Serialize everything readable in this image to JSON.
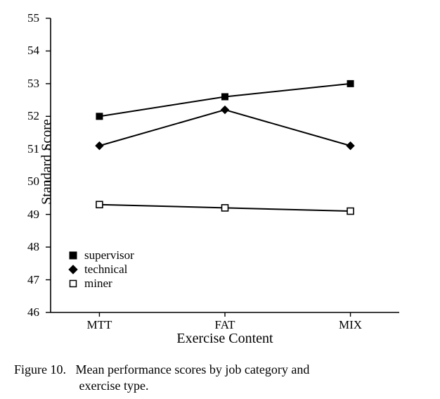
{
  "chart": {
    "type": "line",
    "categories": [
      "MTT",
      "FAT",
      "MIX"
    ],
    "series": [
      {
        "name": "supervisor",
        "marker": "filled-square",
        "values": [
          52.0,
          52.6,
          53.0
        ]
      },
      {
        "name": "technical",
        "marker": "filled-diamond",
        "values": [
          51.1,
          52.2,
          51.1
        ]
      },
      {
        "name": "miner",
        "marker": "open-square",
        "values": [
          49.3,
          49.2,
          49.1
        ]
      }
    ],
    "ylabel": "Standard Score",
    "xlabel": "Exercise Content",
    "ylim": [
      46,
      55
    ],
    "ytick_step": 1,
    "yticks": [
      46,
      47,
      48,
      49,
      50,
      51,
      52,
      53,
      54,
      55
    ],
    "line_color": "#000000",
    "line_width": 2,
    "marker_size": 9,
    "axis_color": "#000000",
    "background_color": "#ffffff",
    "tick_label_fontsize": 17,
    "axis_label_fontsize": 20,
    "caption_fontsize": 18,
    "legend_fontsize": 17,
    "font_family": "Times New Roman"
  },
  "legend": {
    "items": [
      {
        "label": "supervisor"
      },
      {
        "label": "technical"
      },
      {
        "label": "miner"
      }
    ]
  },
  "caption": {
    "lead": "Figure 10.",
    "text_line1": "Mean performance scores by job category and",
    "text_line2": "exercise type."
  }
}
